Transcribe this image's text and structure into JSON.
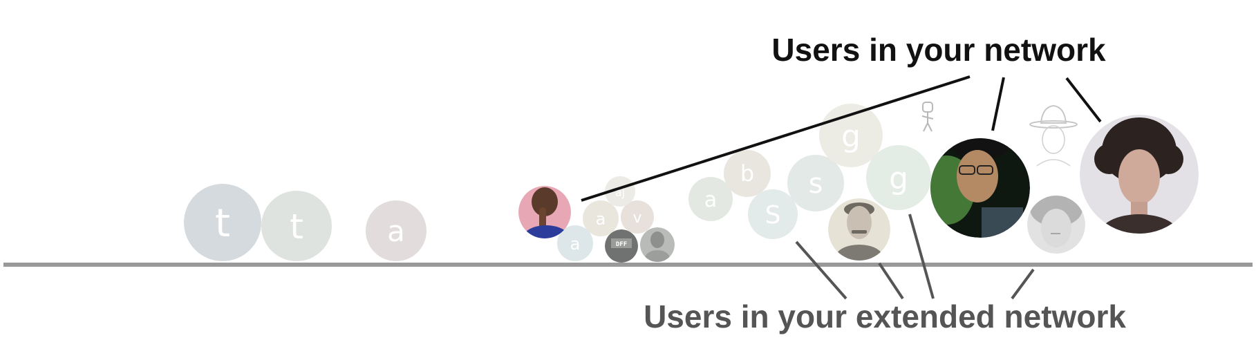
{
  "labels": {
    "network": "Users in your network",
    "extended": "Users in your extended network"
  },
  "colors": {
    "baseline": "#999999",
    "network_label": "#111111",
    "extended_label": "#555555",
    "network_line": "#111111",
    "extended_line": "#555555"
  },
  "avatars": {
    "letters": [
      {
        "letter": "t",
        "color": "#d5dade"
      },
      {
        "letter": "t",
        "color": "#dfe3df"
      },
      {
        "letter": "a",
        "color": "#e3dcdc"
      },
      {
        "letter": "a",
        "color": "#dde6e8"
      },
      {
        "letter": "a",
        "color": "#e9e6de"
      },
      {
        "letter": "v",
        "color": "#e8e0da"
      },
      {
        "letter": "aj",
        "color": "#ecebe6"
      },
      {
        "letter": "a",
        "color": "#e3e9e2"
      },
      {
        "letter": "b",
        "color": "#e9e6e0"
      },
      {
        "letter": "S",
        "color": "#e2eaea"
      },
      {
        "letter": "s",
        "color": "#e3e9e6"
      },
      {
        "letter": "g",
        "color": "#ecebe4"
      },
      {
        "letter": "g",
        "color": "#e4ece6"
      }
    ],
    "photos": [
      {
        "icon": "user-photo-braid-icon"
      },
      {
        "icon": "user-photo-dark-icon"
      },
      {
        "icon": "user-photo-grey-icon"
      },
      {
        "icon": "user-photo-mustache-icon"
      },
      {
        "icon": "user-photo-glasses-icon"
      },
      {
        "icon": "user-sketch-hat-icon"
      },
      {
        "icon": "user-sketch-robot-icon"
      },
      {
        "icon": "user-photo-blond-icon"
      },
      {
        "icon": "user-photo-curly-icon"
      }
    ]
  }
}
